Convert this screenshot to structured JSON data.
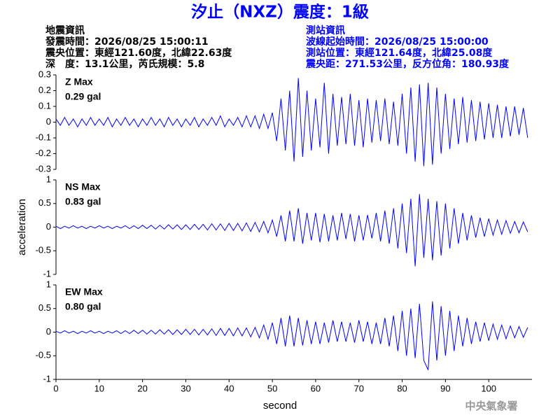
{
  "header": {
    "title": "汐止（NXZ）震度：1級",
    "event_info": [
      "地震資訊",
      "發震時間：2026/08/25 15:00:11",
      "震央位置：東經121.60度，北緯22.63度",
      "深　度：13.1公里，芮氏規模：5.8"
    ],
    "station_info": [
      "測站資訊",
      "波線起始時間：2026/08/25 15:00:00",
      "測站位置：東經121.64度，北緯25.08度",
      "震央距：271.53公里，反方位角：180.93度"
    ]
  },
  "footer": "中央氣象署",
  "chart_data": [
    {
      "type": "line",
      "annotation": [
        "Z Max",
        "0.29 gal"
      ],
      "annotation_color": "#ff0000",
      "xlim": [
        0,
        110
      ],
      "ylim": [
        -0.3,
        0.3
      ],
      "yticks": [
        0.3,
        0.2,
        0.1,
        0,
        -0.1,
        -0.2,
        -0.3
      ],
      "x": [
        0,
        1,
        2,
        3,
        4,
        5,
        6,
        7,
        8,
        9,
        10,
        11,
        12,
        13,
        14,
        15,
        16,
        17,
        18,
        19,
        20,
        21,
        22,
        23,
        24,
        25,
        26,
        27,
        28,
        29,
        30,
        31,
        32,
        33,
        34,
        35,
        36,
        37,
        38,
        39,
        40,
        41,
        42,
        43,
        44,
        45,
        46,
        47,
        48,
        49,
        50,
        51,
        52,
        53,
        54,
        55,
        56,
        57,
        58,
        59,
        60,
        61,
        62,
        63,
        64,
        65,
        66,
        67,
        68,
        69,
        70,
        71,
        72,
        73,
        74,
        75,
        76,
        77,
        78,
        79,
        80,
        81,
        82,
        83,
        84,
        85,
        86,
        87,
        88,
        89,
        90,
        91,
        92,
        93,
        94,
        95,
        96,
        97,
        98,
        99,
        100,
        101,
        102,
        103,
        104,
        105,
        106,
        107,
        108,
        109
      ],
      "series": [
        {
          "color": "#0000ff",
          "values": [
            0.02,
            -0.02,
            0.03,
            -0.02,
            0.02,
            -0.03,
            0.02,
            -0.02,
            0.03,
            -0.02,
            0.02,
            -0.02,
            0.03,
            -0.03,
            0.02,
            -0.02,
            0.03,
            -0.02,
            0.02,
            -0.03,
            0.02,
            -0.02,
            0.03,
            -0.02,
            0.02,
            -0.03,
            0.03,
            -0.02,
            0.02,
            -0.03,
            0.02,
            -0.02,
            0.03,
            -0.03,
            0.02,
            -0.02,
            0.03,
            -0.02,
            0.04,
            -0.03,
            0.02,
            -0.02,
            0.03,
            -0.03,
            0.04,
            -0.03,
            0.04,
            -0.04,
            0.05,
            -0.04,
            0.06,
            -0.12,
            0.15,
            -0.18,
            0.2,
            -0.25,
            0.28,
            -0.22,
            0.2,
            -0.18,
            0.15,
            -0.16,
            0.25,
            -0.2,
            0.18,
            -0.15,
            0.16,
            -0.14,
            0.18,
            -0.15,
            0.14,
            -0.16,
            0.15,
            -0.13,
            0.14,
            -0.12,
            0.15,
            -0.14,
            0.13,
            -0.15,
            0.18,
            -0.2,
            0.22,
            -0.25,
            0.24,
            -0.28,
            0.25,
            -0.27,
            0.22,
            -0.2,
            0.18,
            -0.17,
            0.15,
            -0.14,
            0.16,
            -0.13,
            0.14,
            -0.12,
            0.13,
            -0.11,
            0.12,
            -0.1,
            0.11,
            -0.1,
            0.1,
            -0.09,
            0.1,
            -0.08,
            0.09,
            -0.1
          ]
        }
      ]
    },
    {
      "type": "line",
      "annotation": [
        "NS Max",
        "0.83 gal"
      ],
      "annotation_color": "#ff0000",
      "ylabel": "acceleration",
      "xlim": [
        0,
        110
      ],
      "ylim": [
        -1,
        1
      ],
      "yticks": [
        1,
        0.5,
        0,
        -0.5,
        -1
      ],
      "x": [
        0,
        1,
        2,
        3,
        4,
        5,
        6,
        7,
        8,
        9,
        10,
        11,
        12,
        13,
        14,
        15,
        16,
        17,
        18,
        19,
        20,
        21,
        22,
        23,
        24,
        25,
        26,
        27,
        28,
        29,
        30,
        31,
        32,
        33,
        34,
        35,
        36,
        37,
        38,
        39,
        40,
        41,
        42,
        43,
        44,
        45,
        46,
        47,
        48,
        49,
        50,
        51,
        52,
        53,
        54,
        55,
        56,
        57,
        58,
        59,
        60,
        61,
        62,
        63,
        64,
        65,
        66,
        67,
        68,
        69,
        70,
        71,
        72,
        73,
        74,
        75,
        76,
        77,
        78,
        79,
        80,
        81,
        82,
        83,
        84,
        85,
        86,
        87,
        88,
        89,
        90,
        91,
        92,
        93,
        94,
        95,
        96,
        97,
        98,
        99,
        100,
        101,
        102,
        103,
        104,
        105,
        106,
        107,
        108,
        109
      ],
      "series": [
        {
          "color": "#0000ff",
          "values": [
            0.02,
            -0.03,
            0.02,
            -0.02,
            0.03,
            -0.02,
            0.02,
            -0.03,
            0.02,
            -0.02,
            0.03,
            -0.02,
            0.02,
            -0.03,
            0.02,
            -0.02,
            0.03,
            -0.03,
            0.03,
            -0.03,
            0.04,
            -0.03,
            0.04,
            -0.04,
            0.04,
            -0.04,
            0.05,
            -0.04,
            0.05,
            -0.05,
            0.05,
            -0.05,
            0.06,
            -0.05,
            0.06,
            -0.06,
            0.07,
            -0.06,
            0.07,
            -0.07,
            0.08,
            -0.07,
            0.08,
            -0.08,
            0.09,
            -0.09,
            0.1,
            -0.1,
            0.12,
            -0.12,
            0.15,
            -0.2,
            0.25,
            -0.3,
            0.35,
            -0.3,
            0.4,
            -0.35,
            0.3,
            -0.28,
            0.3,
            -0.32,
            0.28,
            -0.3,
            0.25,
            -0.28,
            0.3,
            -0.25,
            0.28,
            -0.3,
            0.25,
            -0.28,
            0.26,
            -0.24,
            0.3,
            -0.3,
            0.35,
            -0.35,
            0.4,
            -0.45,
            0.5,
            -0.55,
            0.6,
            -0.83,
            0.7,
            -0.65,
            0.6,
            -0.7,
            0.55,
            -0.6,
            0.5,
            -0.45,
            0.4,
            -0.35,
            0.3,
            -0.28,
            0.25,
            -0.22,
            0.2,
            -0.2,
            0.18,
            -0.17,
            0.15,
            -0.15,
            0.14,
            -0.13,
            0.12,
            -0.12,
            0.11,
            -0.1
          ]
        }
      ]
    },
    {
      "type": "line",
      "annotation": [
        "EW Max",
        "0.80 gal"
      ],
      "annotation_color": "#ff0000",
      "xlabel": "second",
      "xlim": [
        0,
        110
      ],
      "xticks": [
        0,
        10,
        20,
        30,
        40,
        50,
        60,
        70,
        80,
        90,
        100
      ],
      "ylim": [
        -1,
        1
      ],
      "yticks": [
        1,
        0.5,
        0,
        -0.5,
        -1
      ],
      "x": [
        0,
        1,
        2,
        3,
        4,
        5,
        6,
        7,
        8,
        9,
        10,
        11,
        12,
        13,
        14,
        15,
        16,
        17,
        18,
        19,
        20,
        21,
        22,
        23,
        24,
        25,
        26,
        27,
        28,
        29,
        30,
        31,
        32,
        33,
        34,
        35,
        36,
        37,
        38,
        39,
        40,
        41,
        42,
        43,
        44,
        45,
        46,
        47,
        48,
        49,
        50,
        51,
        52,
        53,
        54,
        55,
        56,
        57,
        58,
        59,
        60,
        61,
        62,
        63,
        64,
        65,
        66,
        67,
        68,
        69,
        70,
        71,
        72,
        73,
        74,
        75,
        76,
        77,
        78,
        79,
        80,
        81,
        82,
        83,
        84,
        85,
        86,
        87,
        88,
        89,
        90,
        91,
        92,
        93,
        94,
        95,
        96,
        97,
        98,
        99,
        100,
        101,
        102,
        103,
        104,
        105,
        106,
        107,
        108,
        109
      ],
      "series": [
        {
          "color": "#0000ff",
          "values": [
            0.02,
            -0.02,
            0.03,
            -0.02,
            0.02,
            -0.03,
            0.02,
            -0.02,
            0.03,
            -0.02,
            0.02,
            -0.03,
            0.02,
            -0.02,
            0.03,
            -0.03,
            0.03,
            -0.03,
            0.04,
            -0.03,
            0.04,
            -0.04,
            0.04,
            -0.04,
            0.05,
            -0.04,
            0.05,
            -0.05,
            0.05,
            -0.05,
            0.06,
            -0.05,
            0.06,
            -0.06,
            0.06,
            -0.06,
            0.07,
            -0.07,
            0.08,
            -0.07,
            0.08,
            -0.08,
            0.09,
            -0.08,
            0.09,
            -0.1,
            0.1,
            -0.12,
            0.15,
            -0.15,
            0.2,
            -0.25,
            0.3,
            -0.3,
            0.35,
            -0.3,
            0.3,
            -0.28,
            0.25,
            -0.25,
            0.22,
            -0.25,
            0.2,
            -0.22,
            0.25,
            -0.2,
            0.22,
            -0.2,
            0.2,
            -0.22,
            0.25,
            -0.2,
            0.22,
            -0.25,
            0.2,
            -0.25,
            0.3,
            -0.3,
            0.35,
            -0.4,
            0.45,
            -0.5,
            0.5,
            -0.55,
            0.6,
            -0.6,
            -0.8,
            0.65,
            -0.6,
            0.55,
            -0.5,
            0.45,
            -0.4,
            0.35,
            -0.3,
            0.3,
            -0.25,
            0.22,
            -0.2,
            0.2,
            -0.18,
            0.17,
            -0.15,
            0.15,
            -0.14,
            0.13,
            -0.12,
            0.12,
            -0.11,
            0.1
          ]
        }
      ]
    }
  ]
}
